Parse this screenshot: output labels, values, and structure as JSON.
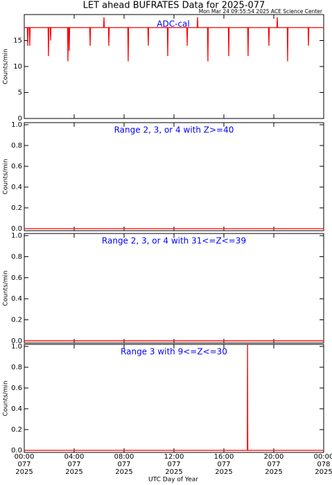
{
  "chart_data": [
    {
      "type": "line",
      "title": "LET ahead BUFRATES Data for 2025-077",
      "subtitle": "Mon Mar 24 09:55:54 2025 ACE Science Center",
      "annotation": "ADC-cal",
      "ylabel": "Counts/min",
      "xlim": [
        0,
        24
      ],
      "xticks": [
        0,
        4,
        8,
        12,
        16,
        20,
        24
      ],
      "ylim": [
        0,
        20
      ],
      "yticks": [
        0,
        5,
        10,
        15
      ],
      "series": [
        {
          "color": "#ff0000",
          "x": [
            0,
            0.25,
            0.28,
            0.31,
            0.41,
            0.44,
            0.47,
            1.91,
            1.94,
            1.97,
            2.08,
            2.11,
            2.14,
            3.47,
            3.5,
            3.53,
            3.58,
            3.61,
            3.64,
            5.25,
            5.28,
            5.31,
            6.36,
            6.39,
            6.42,
            6.75,
            6.78,
            6.81,
            8.3,
            8.33,
            8.36,
            9.91,
            9.94,
            9.97,
            11.47,
            11.5,
            11.53,
            13.03,
            13.06,
            13.09,
            13.86,
            13.89,
            13.92,
            14.69,
            14.72,
            14.75,
            16.36,
            16.39,
            16.42,
            17.91,
            17.94,
            17.97,
            19.58,
            19.61,
            19.64,
            20.25,
            20.28,
            20.31,
            21.08,
            21.11,
            21.14,
            22.75,
            22.78,
            22.81,
            24
          ],
          "values": [
            17.5,
            17.5,
            14,
            17.5,
            17.5,
            14,
            17.5,
            17.5,
            12,
            17.5,
            17.5,
            15,
            17.5,
            17.5,
            11,
            17.5,
            17.5,
            13,
            17.5,
            17.5,
            14,
            17.5,
            17.5,
            19.5,
            17.5,
            17.5,
            14,
            17.5,
            17.5,
            11,
            17.5,
            17.5,
            14,
            17.5,
            17.5,
            12,
            17.5,
            17.5,
            14,
            17.5,
            17.5,
            19.5,
            17.5,
            17.5,
            11,
            17.5,
            17.5,
            12,
            17.5,
            17.5,
            12,
            17.5,
            17.5,
            14,
            17.5,
            17.5,
            19.5,
            17.5,
            17.5,
            11,
            17.5,
            17.5,
            14,
            17.5,
            17.5
          ]
        }
      ]
    },
    {
      "type": "line",
      "title": "Range 2, 3, or 4 with Z>=40",
      "ylabel": "Counts/min",
      "xlim": [
        0,
        24
      ],
      "xticks": [
        0,
        4,
        8,
        12,
        16,
        20,
        24
      ],
      "ylim": [
        -0.02,
        1.02
      ],
      "yticks": [
        {
          "value": 0,
          "label": "0.0"
        },
        {
          "value": 0.2,
          "label": "0.2"
        },
        {
          "value": 0.4,
          "label": "0.4"
        },
        {
          "value": 0.6,
          "label": "0.6"
        },
        {
          "value": 0.8,
          "label": "0.8"
        },
        {
          "value": 1,
          "label": "1.0"
        }
      ],
      "series": [
        {
          "color": "#ff0000",
          "x": [
            0,
            24
          ],
          "values": [
            0,
            0
          ]
        }
      ]
    },
    {
      "type": "line",
      "title": "Range 2, 3, or 4 with 31<=Z<=39",
      "ylabel": "Counts/min",
      "xlim": [
        0,
        24
      ],
      "xticks": [
        0,
        4,
        8,
        12,
        16,
        20,
        24
      ],
      "ylim": [
        -0.02,
        1.02
      ],
      "yticks": [
        {
          "value": 0,
          "label": "0.0"
        },
        {
          "value": 0.2,
          "label": "0.2"
        },
        {
          "value": 0.4,
          "label": "0.4"
        },
        {
          "value": 0.6,
          "label": "0.6"
        },
        {
          "value": 0.8,
          "label": "0.8"
        },
        {
          "value": 1,
          "label": "1.0"
        }
      ],
      "series": [
        {
          "color": "#ff0000",
          "x": [
            0,
            24
          ],
          "values": [
            0,
            0
          ]
        }
      ]
    },
    {
      "type": "line",
      "title": "Range 3 with 9<=Z<=30",
      "ylabel": "Counts/min",
      "xlabel": "UTC Day of Year",
      "xlim": [
        0,
        24
      ],
      "xticks": [
        {
          "value": 0,
          "label": "00:00"
        },
        {
          "value": 4,
          "label": "04:00"
        },
        {
          "value": 8,
          "label": "08:00"
        },
        {
          "value": 12,
          "label": "12:00"
        },
        {
          "value": 16,
          "label": "16:00"
        },
        {
          "value": 20,
          "label": "20:00"
        },
        {
          "value": 24,
          "label": "00:00"
        }
      ],
      "xtick_days": [
        "077",
        "077",
        "077",
        "077",
        "077",
        "077",
        "078"
      ],
      "xtick_years": [
        "2025",
        "2025",
        "2025",
        "2025",
        "2025",
        "2025",
        "2025"
      ],
      "ylim": [
        -0.02,
        1.02
      ],
      "yticks": [
        {
          "value": 0,
          "label": "0.0"
        },
        {
          "value": 0.2,
          "label": "0.2"
        },
        {
          "value": 0.4,
          "label": "0.4"
        },
        {
          "value": 0.6,
          "label": "0.6"
        },
        {
          "value": 0.8,
          "label": "0.8"
        },
        {
          "value": 1,
          "label": "1.0"
        }
      ],
      "series": [
        {
          "color": "#ff0000",
          "x": [
            0,
            17.88,
            17.9,
            17.92,
            24
          ],
          "values": [
            0,
            0,
            1.02,
            0,
            0
          ]
        }
      ]
    }
  ]
}
